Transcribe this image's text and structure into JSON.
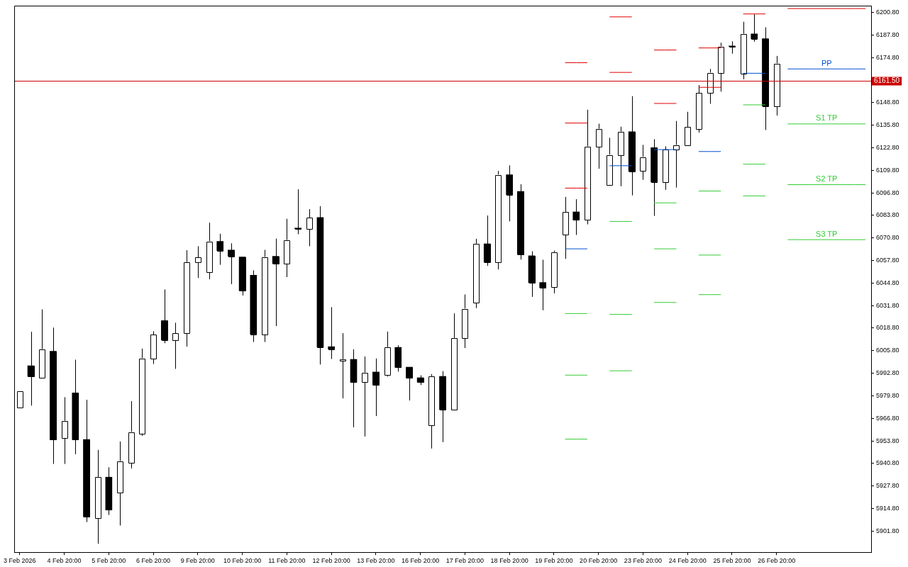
{
  "chart_data": {
    "type": "candlestick",
    "categories": [
      "3 Feb 2026",
      null,
      null,
      null,
      "4 Feb 20:00",
      null,
      null,
      null,
      "5 Feb 20:00",
      null,
      null,
      null,
      "6 Feb 20:00",
      null,
      null,
      null,
      "9 Feb 20:00",
      null,
      null,
      null,
      "10 Feb 20:00",
      null,
      null,
      null,
      "11 Feb 20:00",
      null,
      null,
      null,
      "12 Feb 20:00",
      null,
      null,
      null,
      "13 Feb 20:00",
      null,
      null,
      null,
      "16 Feb 20:00",
      null,
      null,
      null,
      "17 Feb 20:00",
      null,
      null,
      null,
      "18 Feb 20:00",
      null,
      null,
      null,
      "19 Feb 20:00",
      null,
      null,
      null,
      "20 Feb 20:00",
      null,
      null,
      null,
      "23 Feb 20:00",
      null,
      null,
      null,
      "24 Feb 20:00",
      null,
      null,
      null,
      "25 Feb 20:00",
      null,
      null,
      null,
      "26 Feb 20:00",
      null,
      null,
      null,
      null,
      null,
      null,
      null,
      null
    ],
    "ohlc": [
      [
        5972.9,
        5982.6,
        5972.9,
        5982.6
      ],
      [
        5997.1,
        6016.7,
        5974.1,
        5990.9
      ],
      [
        5990.2,
        6029.6,
        5990.2,
        6006.6
      ],
      [
        6005.5,
        6019.1,
        5940.5,
        5954.5
      ],
      [
        5955.4,
        5979.0,
        5940.5,
        5965.3
      ],
      [
        5981.4,
        6000.6,
        5946.1,
        5954.5
      ],
      [
        5954.6,
        5977.5,
        5907.0,
        5910.0
      ],
      [
        5909.2,
        5948.6,
        5894.5,
        5932.8
      ],
      [
        5932.9,
        5938.6,
        5911.1,
        5914.0
      ],
      [
        5924.0,
        5953.5,
        5905.0,
        5942.1
      ],
      [
        5941.3,
        5976.7,
        5937.9,
        5958.9
      ],
      [
        5958.1,
        6007.0,
        5956.7,
        6001.4
      ],
      [
        6001.3,
        6017.0,
        5998.1,
        6015.0
      ],
      [
        6023.1,
        6041.1,
        6010.1,
        6012.0
      ],
      [
        6012.0,
        6021.9,
        5995.3,
        6015.8
      ],
      [
        6015.8,
        6063.7,
        6008.1,
        6056.7
      ],
      [
        6056.6,
        6066.0,
        6047.7,
        6059.5
      ],
      [
        6051.0,
        6079.6,
        6046.9,
        6068.8
      ],
      [
        6068.8,
        6073.2,
        6055.3,
        6063.5
      ],
      [
        6063.8,
        6067.7,
        6044.1,
        6060.2
      ],
      [
        6059.8,
        6059.8,
        6037.6,
        6040.3
      ],
      [
        6049.3,
        6052.1,
        6010.8,
        6015.3
      ],
      [
        6015.3,
        6063.9,
        6010.8,
        6059.7
      ],
      [
        6060.2,
        6070.4,
        6020.0,
        6055.9
      ],
      [
        6056.0,
        6081.8,
        6048.2,
        6069.5
      ],
      [
        6076.5,
        6098.8,
        6072.9,
        6076.0
      ],
      [
        6075.9,
        6087.4,
        6066.0,
        6082.4
      ],
      [
        6082.6,
        6089.1,
        5997.8,
        6007.9
      ],
      [
        6008.1,
        6030.9,
        6001.0,
        6006.7
      ],
      [
        6000.0,
        6015.9,
        5978.3,
        6000.8
      ],
      [
        6000.8,
        6006.6,
        5961.6,
        5987.6
      ],
      [
        5987.6,
        6002.5,
        5956.3,
        5993.1
      ],
      [
        5993.5,
        6001.3,
        5968.1,
        5986.0
      ],
      [
        5991.8,
        6016.8,
        5990.9,
        6007.7
      ],
      [
        6007.7,
        6008.9,
        5993.7,
        5996.2
      ],
      [
        5996.3,
        5996.3,
        5977.1,
        5990.0
      ],
      [
        5990.2,
        5991.6,
        5986.0,
        5987.6
      ],
      [
        5962.8,
        5992.3,
        5949.4,
        5991.0
      ],
      [
        5991.0,
        5994.0,
        5953.1,
        5971.8
      ],
      [
        5971.8,
        6027.3,
        5971.8,
        6013.0
      ],
      [
        6013.0,
        6038.2,
        6007.3,
        6030.0
      ],
      [
        6033.3,
        6070.3,
        6030.3,
        6067.4
      ],
      [
        6067.4,
        6083.7,
        6054.7,
        6056.7
      ],
      [
        6056.7,
        6109.4,
        6052.6,
        6107.2
      ],
      [
        6107.2,
        6112.6,
        6080.3,
        6095.7
      ],
      [
        6097.6,
        6101.7,
        6058.3,
        6061.2
      ],
      [
        6060.5,
        6063.1,
        6036.8,
        6044.9
      ],
      [
        6045.1,
        6058.2,
        6029.1,
        6042.1
      ],
      [
        6042.3,
        6063.5,
        6038.8,
        6062.5
      ],
      [
        6072.7,
        6094.4,
        6058.7,
        6085.7
      ],
      [
        6085.8,
        6093.1,
        6072.5,
        6081.1
      ],
      [
        6081.1,
        6144.7,
        6078.6,
        6123.5
      ],
      [
        6123.5,
        6136.6,
        6110.7,
        6133.6
      ],
      [
        6101.5,
        6128.5,
        6101.5,
        6118.6
      ],
      [
        6118.6,
        6134.9,
        6100.6,
        6132.0
      ],
      [
        6132.0,
        6152.5,
        6095.3,
        6109.1
      ],
      [
        6109.3,
        6124.4,
        6104.3,
        6117.4
      ],
      [
        6122.8,
        6127.7,
        6083.5,
        6103.0
      ],
      [
        6102.8,
        6123.6,
        6098.5,
        6121.6
      ],
      [
        6121.6,
        6138.2,
        6099.8,
        6124.3
      ],
      [
        6124.3,
        6143.5,
        6124.3,
        6134.6
      ],
      [
        6133.6,
        6158.9,
        6131.5,
        6154.3
      ],
      [
        6154.3,
        6168.2,
        6148.1,
        6166.0
      ],
      [
        6166.0,
        6183.3,
        6155.1,
        6181.1
      ],
      [
        6181.4,
        6184.1,
        6177.0,
        6181.2
      ],
      [
        6165.4,
        6195.4,
        6162.2,
        6188.4
      ],
      [
        6188.4,
        6199.7,
        6183.9,
        6185.6
      ],
      [
        6185.6,
        6192.2,
        6133.0,
        6146.8
      ],
      [
        6146.6,
        6175.7,
        6141.3,
        6171.3
      ],
      null,
      null,
      null,
      null,
      null,
      null,
      null,
      null
    ],
    "colors": [
      "#ffffff",
      "#000000",
      "#ffffff",
      "#000000",
      "#ffffff",
      "#000000",
      "#000000",
      "#ffffff",
      "#000000",
      "#ffffff",
      "#ffffff",
      "#ffffff",
      "#ffffff",
      "#000000",
      "#ffffff",
      "#ffffff",
      "#ffffff",
      "#ffffff",
      "#000000",
      "#000000",
      "#000000",
      "#000000",
      "#ffffff",
      "#000000",
      "#ffffff",
      "#000000",
      "#ffffff",
      "#000000",
      "#000000",
      "#ffffff",
      "#000000",
      "#ffffff",
      "#000000",
      "#ffffff",
      "#000000",
      "#000000",
      "#000000",
      "#ffffff",
      "#000000",
      "#ffffff",
      "#ffffff",
      "#ffffff",
      "#000000",
      "#ffffff",
      "#000000",
      "#000000",
      "#000000",
      "#000000",
      "#ffffff",
      "#ffffff",
      "#000000",
      "#ffffff",
      "#ffffff",
      "#ffffff",
      "#ffffff",
      "#000000",
      "#ffffff",
      "#000000",
      "#ffffff",
      "#ffffff",
      "#ffffff",
      "#ffffff",
      "#ffffff",
      "#ffffff",
      "#000000",
      "#ffffff",
      "#000000",
      "#000000",
      "#ffffff",
      null,
      null,
      null,
      null,
      null,
      null,
      null,
      null
    ],
    "series": [
      {
        "type": "line",
        "color": "#e00000",
        "values": [
          null,
          null,
          null,
          null,
          null,
          null,
          null,
          null,
          null,
          null,
          null,
          null,
          null,
          null,
          null,
          null,
          null,
          null,
          null,
          null,
          null,
          null,
          null,
          null,
          null,
          null,
          null,
          null,
          null,
          null,
          null,
          null,
          null,
          null,
          null,
          null,
          null,
          null,
          null,
          null,
          null,
          null,
          null,
          null,
          null,
          null,
          null,
          null,
          null,
          6171.8,
          6171.8,
          6171.8,
          null,
          null,
          null,
          null,
          null,
          null,
          null,
          null,
          null,
          null,
          null,
          null,
          null,
          null,
          null,
          null,
          null,
          null,
          null,
          null,
          null,
          null,
          null,
          null,
          null
        ]
      },
      {
        "type": "line",
        "color": "#e00000",
        "values": [
          null,
          null,
          null,
          null,
          null,
          null,
          null,
          null,
          null,
          null,
          null,
          null,
          null,
          null,
          null,
          null,
          null,
          null,
          null,
          null,
          null,
          null,
          null,
          null,
          null,
          null,
          null,
          null,
          null,
          null,
          null,
          null,
          null,
          null,
          null,
          null,
          null,
          null,
          null,
          null,
          null,
          null,
          null,
          null,
          null,
          null,
          null,
          null,
          null,
          6137.0,
          6137.0,
          6137.0,
          null,
          6198.2,
          6198.2,
          6198.2,
          null,
          6179.1,
          6179.1,
          6179.1,
          null,
          6180.3,
          6180.3,
          6180.3,
          null,
          null,
          null,
          null,
          null,
          null,
          null,
          null,
          null,
          null,
          null,
          null,
          null
        ]
      },
      {
        "type": "line",
        "color": "#e00000",
        "values": [
          null,
          null,
          null,
          null,
          null,
          null,
          null,
          null,
          null,
          null,
          null,
          null,
          null,
          null,
          null,
          null,
          null,
          null,
          null,
          null,
          null,
          null,
          null,
          null,
          null,
          null,
          null,
          null,
          null,
          null,
          null,
          null,
          null,
          null,
          null,
          null,
          null,
          null,
          null,
          null,
          null,
          null,
          null,
          null,
          null,
          null,
          null,
          null,
          null,
          6099.5,
          6099.5,
          6099.5,
          null,
          6166.2,
          6166.2,
          6166.2,
          null,
          6148.3,
          6148.3,
          6148.3,
          null,
          6157.6,
          6157.6,
          6157.6,
          null,
          6199.9,
          6199.9,
          6199.9,
          null,
          6203.0,
          6203.0,
          6203.0,
          6203.0,
          6203.0,
          6203.0,
          6203.0,
          6203.0
        ]
      },
      {
        "type": "line",
        "color": "#0050d0",
        "values": [
          null,
          null,
          null,
          null,
          null,
          null,
          null,
          null,
          null,
          null,
          null,
          null,
          null,
          null,
          null,
          null,
          null,
          null,
          null,
          null,
          null,
          null,
          null,
          null,
          null,
          null,
          null,
          null,
          null,
          null,
          null,
          null,
          null,
          null,
          null,
          null,
          null,
          null,
          null,
          null,
          null,
          null,
          null,
          null,
          null,
          null,
          null,
          null,
          null,
          6064.5,
          6064.5,
          6064.5,
          null,
          6112.4,
          6112.4,
          6112.4,
          null,
          6121.7,
          6121.7,
          6121.7,
          null,
          6120.6,
          6120.6,
          6120.6,
          null,
          6165.7,
          6165.7,
          6165.7,
          null,
          6168.2,
          6168.2,
          6168.2,
          6168.2,
          6168.2,
          6168.2,
          6168.2,
          6168.2
        ]
      },
      {
        "type": "line",
        "color": "#33cc33",
        "values": [
          null,
          null,
          null,
          null,
          null,
          null,
          null,
          null,
          null,
          null,
          null,
          null,
          null,
          null,
          null,
          null,
          null,
          null,
          null,
          null,
          null,
          null,
          null,
          null,
          null,
          null,
          null,
          null,
          null,
          null,
          null,
          null,
          null,
          null,
          null,
          null,
          null,
          null,
          null,
          null,
          null,
          null,
          null,
          null,
          null,
          null,
          null,
          null,
          null,
          6027.2,
          6027.2,
          6027.2,
          null,
          6080.3,
          6080.3,
          6080.3,
          null,
          6091.0,
          6091.0,
          6091.0,
          null,
          6097.8,
          6097.8,
          6097.8,
          null,
          6147.5,
          6147.5,
          6147.5,
          null,
          6136.5,
          6136.5,
          6136.5,
          6136.5,
          6136.5,
          6136.5,
          6136.5,
          6136.5
        ]
      },
      {
        "type": "line",
        "color": "#33cc33",
        "values": [
          null,
          null,
          null,
          null,
          null,
          null,
          null,
          null,
          null,
          null,
          null,
          null,
          null,
          null,
          null,
          null,
          null,
          null,
          null,
          null,
          null,
          null,
          null,
          null,
          null,
          null,
          null,
          null,
          null,
          null,
          null,
          null,
          null,
          null,
          null,
          null,
          null,
          null,
          null,
          null,
          null,
          null,
          null,
          null,
          null,
          null,
          null,
          null,
          null,
          5991.7,
          5991.7,
          5991.7,
          null,
          6026.7,
          6026.7,
          6026.7,
          null,
          6064.5,
          6064.5,
          6064.5,
          null,
          6060.9,
          6060.9,
          6060.9,
          null,
          6113.3,
          6113.3,
          6113.3,
          null,
          6101.5,
          6101.5,
          6101.5,
          6101.5,
          6101.5,
          6101.5,
          6101.5,
          6101.5
        ]
      },
      {
        "type": "line",
        "color": "#33cc33",
        "values": [
          null,
          null,
          null,
          null,
          null,
          null,
          null,
          null,
          null,
          null,
          null,
          null,
          null,
          null,
          null,
          null,
          null,
          null,
          null,
          null,
          null,
          null,
          null,
          null,
          null,
          null,
          null,
          null,
          null,
          null,
          null,
          null,
          null,
          null,
          null,
          null,
          null,
          null,
          null,
          null,
          null,
          null,
          null,
          null,
          null,
          null,
          null,
          null,
          null,
          5954.8,
          5954.8,
          5954.8,
          null,
          5994.2,
          5994.2,
          5994.2,
          null,
          6033.6,
          6033.6,
          6033.6,
          null,
          6038.1,
          6038.1,
          6038.1,
          null,
          6095.0,
          6095.0,
          6095.0,
          null,
          6069.8,
          6069.8,
          6069.8,
          6069.8,
          6069.8,
          6069.8,
          6069.8,
          6069.8
        ]
      }
    ],
    "ref_lines": [
      {
        "axis": "y",
        "value": 6161.5,
        "label": "6161.50",
        "color": "#cc0000"
      }
    ],
    "annotations": [
      {
        "text": "PP",
        "y": 6168.2
      },
      {
        "text": "S1 TP",
        "y": 6136.5
      },
      {
        "text": "S2 TP",
        "y": 6101.5
      },
      {
        "text": "S3 TP",
        "y": 6069.8
      }
    ],
    "ylim": [
      5889.6,
      6204.5
    ],
    "yticks": [
      {
        "value": 5901.8,
        "label": "5901.80"
      },
      {
        "value": 5914.8,
        "label": "5914.80"
      },
      {
        "value": 5927.8,
        "label": "5927.80"
      },
      {
        "value": 5940.8,
        "label": "5940.80"
      },
      {
        "value": 5953.8,
        "label": "5953.80"
      },
      {
        "value": 5966.8,
        "label": "5966.80"
      },
      {
        "value": 5979.8,
        "label": "5979.80"
      },
      {
        "value": 5992.8,
        "label": "5992.80"
      },
      {
        "value": 6005.8,
        "label": "6005.80"
      },
      {
        "value": 6018.8,
        "label": "6018.80"
      },
      {
        "value": 6031.8,
        "label": "6031.80"
      },
      {
        "value": 6044.8,
        "label": "6044.80"
      },
      {
        "value": 6057.8,
        "label": "6057.80"
      },
      {
        "value": 6070.8,
        "label": "6070.80"
      },
      {
        "value": 6083.8,
        "label": "6083.80"
      },
      {
        "value": 6096.8,
        "label": "6096.80"
      },
      {
        "value": 6109.8,
        "label": "6109.80"
      },
      {
        "value": 6122.8,
        "label": "6122.80"
      },
      {
        "value": 6135.8,
        "label": "6135.80"
      },
      {
        "value": 6148.8,
        "label": "6148.80"
      },
      {
        "value": 6174.8,
        "label": "6174.80"
      },
      {
        "value": 6187.8,
        "label": "6187.80"
      },
      {
        "value": 6200.8,
        "label": "6200.80"
      }
    ],
    "grid": false,
    "legend": false
  }
}
